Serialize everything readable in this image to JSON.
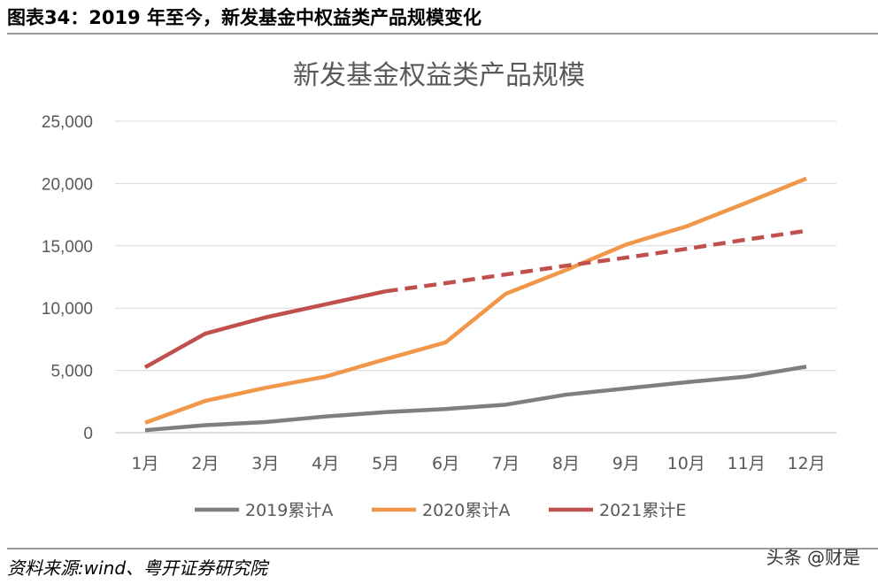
{
  "header": {
    "title": "图表34：2019 年至今，新发基金中权益类产品规模变化"
  },
  "footer": {
    "source": "资料来源:wind、粤开证券研究院",
    "watermark": "头条 @财是"
  },
  "chart_data": {
    "type": "line",
    "title": "新发基金权益类产品规模",
    "xlabel": "",
    "ylabel": "",
    "categories": [
      "1月",
      "2月",
      "3月",
      "4月",
      "5月",
      "6月",
      "7月",
      "8月",
      "9月",
      "10月",
      "11月",
      "12月"
    ],
    "ylim": [
      0,
      25000
    ],
    "yticks": [
      0,
      5000,
      10000,
      15000,
      20000,
      25000
    ],
    "ytick_labels": [
      "0",
      "5,000",
      "10,000",
      "15,000",
      "20,000",
      "25,000"
    ],
    "grid": true,
    "legend_position": "bottom",
    "series": [
      {
        "name": "2019累计A",
        "color": "#7f7f7f",
        "values": [
          200,
          600,
          850,
          1300,
          1650,
          1900,
          2250,
          3050,
          3550,
          4050,
          4500,
          5300
        ]
      },
      {
        "name": "2020累计A",
        "color": "#f0974a",
        "values": [
          800,
          2550,
          3600,
          4500,
          5900,
          7250,
          11150,
          13050,
          15100,
          16550,
          18450,
          20400
        ]
      },
      {
        "name": "2021累计E",
        "color": "#c0504d",
        "values": [
          5250,
          7950,
          9250,
          10300,
          11350,
          12000,
          12700,
          13400,
          14050,
          14750,
          15500,
          16200
        ],
        "dashed_from_category": "5月"
      }
    ]
  }
}
